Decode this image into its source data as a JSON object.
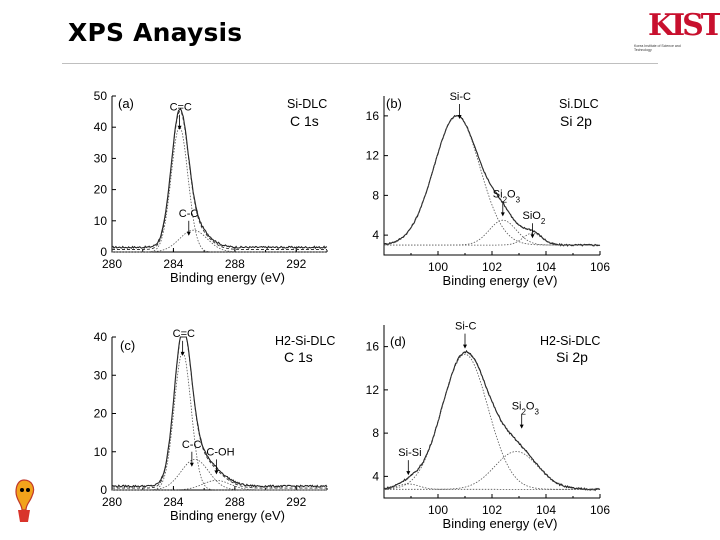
{
  "slide": {
    "title": "XPS Anaysis",
    "logo_text": "KIST",
    "logo_subtitle": "Korea Institute of Science and Technology"
  },
  "chart_data": [
    {
      "id": "a",
      "type": "line",
      "panel_label": "(a)",
      "sample_label": "Si-DLC",
      "region_label": "C 1s",
      "xlabel": "Binding energy (eV)",
      "ylabel": "",
      "xlim": [
        280,
        294
      ],
      "ylim": [
        0,
        50
      ],
      "xticks": [
        280,
        284,
        288,
        292
      ],
      "yticks": [
        0,
        10,
        20,
        30,
        40,
        50
      ],
      "x_reversed": false,
      "annotations": [
        {
          "text": "C=C",
          "x": 284.4,
          "y": 44
        },
        {
          "text": "C-C",
          "x": 285.0,
          "y": 10
        }
      ],
      "curves": [
        {
          "role": "raw",
          "peaks": [
            {
              "c": 284.4,
              "a": 40,
              "w": 0.55
            },
            {
              "c": 285.3,
              "a": 7,
              "w": 0.9
            }
          ],
          "base": 1.5,
          "noisy": true
        },
        {
          "role": "fit",
          "peaks": [
            {
              "c": 284.4,
              "a": 40,
              "w": 0.55
            }
          ],
          "base": 0
        },
        {
          "role": "fit",
          "peaks": [
            {
              "c": 285.3,
              "a": 7,
              "w": 0.9
            }
          ],
          "base": 0
        },
        {
          "role": "envelope",
          "peaks": [
            {
              "c": 284.4,
              "a": 40,
              "w": 0.55
            },
            {
              "c": 285.3,
              "a": 7,
              "w": 0.9
            }
          ],
          "base": 0.8
        }
      ]
    },
    {
      "id": "b",
      "type": "line",
      "panel_label": "(b)",
      "sample_label": "Si.DLC",
      "region_label": "Si 2p",
      "xlabel": "Binding energy (eV)",
      "ylabel": "",
      "xlim": [
        98,
        106
      ],
      "ylim": [
        2,
        18
      ],
      "xticks": [
        100,
        102,
        104,
        106
      ],
      "yticks": [
        4,
        8,
        12,
        16
      ],
      "x_reversed": false,
      "annotations": [
        {
          "text": "Si-C",
          "x": 100.8,
          "y": 17.2
        },
        {
          "text": "Si2O3",
          "x": 102.4,
          "y": 7.4
        },
        {
          "text": "SiO2",
          "x": 103.5,
          "y": 5.2
        }
      ],
      "curves": [
        {
          "role": "raw",
          "peaks": [
            {
              "c": 100.7,
              "a": 13,
              "w": 0.85
            },
            {
              "c": 102.4,
              "a": 2.5,
              "w": 0.5
            },
            {
              "c": 103.5,
              "a": 1.2,
              "w": 0.35
            }
          ],
          "base": 3.0,
          "noisy": true
        },
        {
          "role": "fit",
          "peaks": [
            {
              "c": 100.7,
              "a": 13,
              "w": 0.85
            }
          ],
          "base": 3.0
        },
        {
          "role": "fit",
          "peaks": [
            {
              "c": 102.4,
              "a": 2.5,
              "w": 0.5
            }
          ],
          "base": 3.0
        },
        {
          "role": "fit",
          "peaks": [
            {
              "c": 103.5,
              "a": 1.2,
              "w": 0.35
            }
          ],
          "base": 3.0
        },
        {
          "role": "envelope",
          "peaks": [
            {
              "c": 100.7,
              "a": 13,
              "w": 0.85
            },
            {
              "c": 102.4,
              "a": 2.5,
              "w": 0.5
            },
            {
              "c": 103.5,
              "a": 1.2,
              "w": 0.35
            }
          ],
          "base": 3.0
        }
      ]
    },
    {
      "id": "c",
      "type": "line",
      "panel_label": "(c)",
      "sample_label": "H2-Si-DLC",
      "region_label": "C 1s",
      "xlabel": "Binding energy (eV)",
      "ylabel": "",
      "xlim": [
        280,
        294
      ],
      "ylim": [
        0,
        40
      ],
      "xticks": [
        280,
        284,
        288,
        292
      ],
      "yticks": [
        0,
        10,
        20,
        30,
        40
      ],
      "x_reversed": false,
      "annotations": [
        {
          "text": "C=C",
          "x": 284.6,
          "y": 39
        },
        {
          "text": "C-C",
          "x": 285.2,
          "y": 10
        },
        {
          "text": "C-OH",
          "x": 286.8,
          "y": 8
        }
      ],
      "curves": [
        {
          "role": "raw",
          "peaks": [
            {
              "c": 284.6,
              "a": 36,
              "w": 0.55
            },
            {
              "c": 285.4,
              "a": 8,
              "w": 0.9
            },
            {
              "c": 286.8,
              "a": 2.5,
              "w": 0.9
            }
          ],
          "base": 1.0,
          "noisy": true
        },
        {
          "role": "fit",
          "peaks": [
            {
              "c": 284.6,
              "a": 36,
              "w": 0.55
            }
          ],
          "base": 0
        },
        {
          "role": "fit",
          "peaks": [
            {
              "c": 285.4,
              "a": 8,
              "w": 0.9
            }
          ],
          "base": 0
        },
        {
          "role": "fit",
          "peaks": [
            {
              "c": 286.8,
              "a": 2.5,
              "w": 0.9
            }
          ],
          "base": 0
        },
        {
          "role": "envelope",
          "peaks": [
            {
              "c": 284.6,
              "a": 36,
              "w": 0.55
            },
            {
              "c": 285.4,
              "a": 8,
              "w": 0.9
            },
            {
              "c": 286.8,
              "a": 2.5,
              "w": 0.9
            }
          ],
          "base": 0.5
        }
      ]
    },
    {
      "id": "d",
      "type": "line",
      "panel_label": "(d)",
      "sample_label": "H2-Si-DLC",
      "region_label": "Si 2p",
      "xlabel": "Binding energy (eV)",
      "ylabel": "",
      "xlim": [
        98,
        106
      ],
      "ylim": [
        2,
        18
      ],
      "xticks": [
        100,
        102,
        104,
        106
      ],
      "yticks": [
        4,
        8,
        12,
        16
      ],
      "x_reversed": false,
      "annotations": [
        {
          "text": "Si-C",
          "x": 101.0,
          "y": 17.2
        },
        {
          "text": "Si2O3",
          "x": 103.1,
          "y": 9.8
        },
        {
          "text": "Si-Si",
          "x": 98.9,
          "y": 5.5
        }
      ],
      "curves": [
        {
          "role": "raw",
          "peaks": [
            {
              "c": 101.0,
              "a": 12.5,
              "w": 0.85
            },
            {
              "c": 102.9,
              "a": 3.5,
              "w": 0.8
            },
            {
              "c": 98.9,
              "a": 0.5,
              "w": 0.4
            }
          ],
          "base": 2.8,
          "noisy": true
        },
        {
          "role": "fit",
          "peaks": [
            {
              "c": 101.0,
              "a": 12.5,
              "w": 0.85
            }
          ],
          "base": 2.8
        },
        {
          "role": "fit",
          "peaks": [
            {
              "c": 102.9,
              "a": 3.5,
              "w": 0.8
            }
          ],
          "base": 2.8
        },
        {
          "role": "fit",
          "peaks": [
            {
              "c": 98.9,
              "a": 0.5,
              "w": 0.4
            }
          ],
          "base": 2.8
        },
        {
          "role": "envelope",
          "peaks": [
            {
              "c": 101.0,
              "a": 12.5,
              "w": 0.85
            },
            {
              "c": 102.9,
              "a": 3.5,
              "w": 0.8
            },
            {
              "c": 98.9,
              "a": 0.5,
              "w": 0.4
            }
          ],
          "base": 2.8
        }
      ]
    }
  ]
}
